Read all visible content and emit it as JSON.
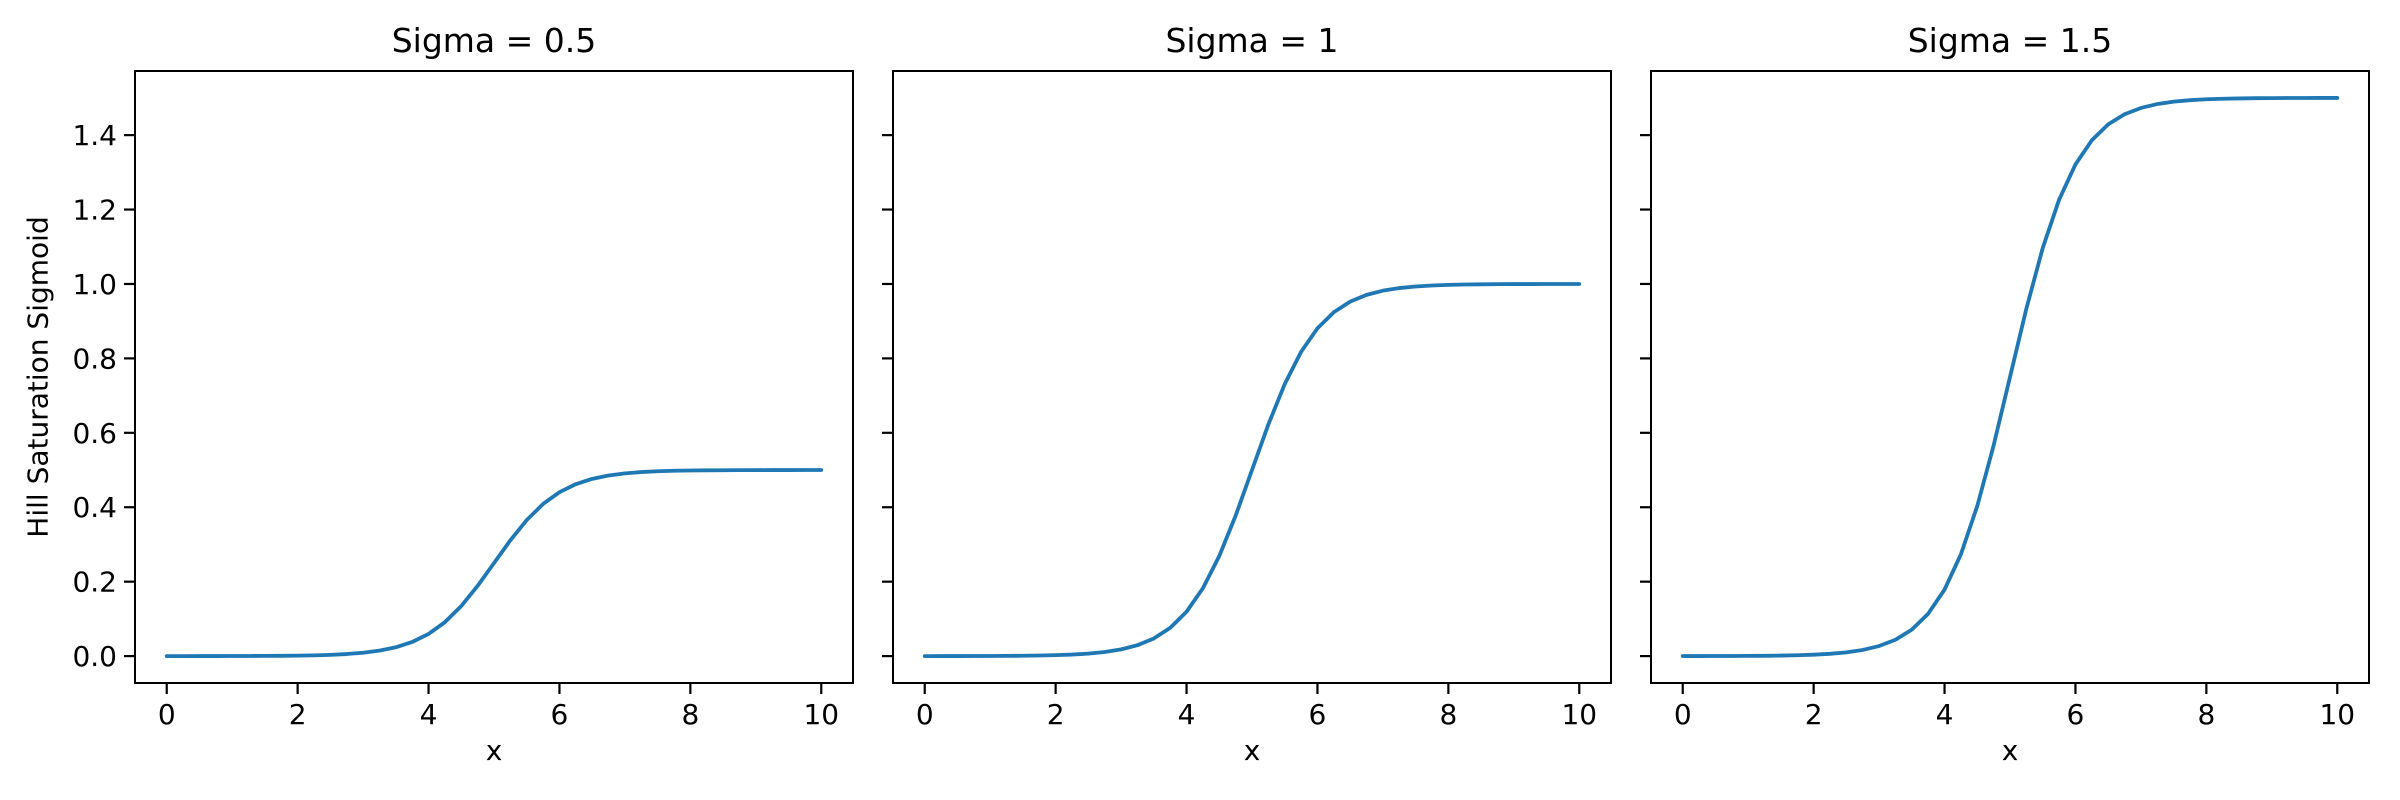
{
  "chart_data": {
    "type": "line",
    "xlabel": "x",
    "ylabel": "Hill Saturation Sigmoid",
    "xlim": [
      -0.5,
      10.5
    ],
    "ylim": [
      -0.075,
      1.575
    ],
    "xticks": [
      0,
      2,
      4,
      6,
      8,
      10
    ],
    "yticks": [
      0.0,
      0.2,
      0.4,
      0.6,
      0.8,
      1.0,
      1.2,
      1.4
    ],
    "ytick_labels": [
      "0.0",
      "0.2",
      "0.4",
      "0.6",
      "0.8",
      "1.0",
      "1.2",
      "1.4"
    ],
    "line_color": "#1f77b4",
    "grid": false,
    "legend": "none",
    "x": [
      0,
      0.25,
      0.5,
      0.75,
      1,
      1.25,
      1.5,
      1.75,
      2,
      2.25,
      2.5,
      2.75,
      3,
      3.25,
      3.5,
      3.75,
      4,
      4.25,
      4.5,
      4.75,
      5,
      5.25,
      5.5,
      5.75,
      6,
      6.25,
      6.5,
      6.75,
      7,
      7.25,
      7.5,
      7.75,
      8,
      8.25,
      8.5,
      8.75,
      9,
      9.25,
      9.5,
      9.75,
      10
    ],
    "subplots": [
      {
        "title": "Sigma = 0.5",
        "sigma": 0.5,
        "values": [
          0.0,
          0.0,
          0.0001,
          0.0001,
          0.0002,
          0.0003,
          0.0005,
          0.0007,
          0.0012,
          0.002,
          0.0033,
          0.0055,
          0.009,
          0.0147,
          0.0237,
          0.0379,
          0.0596,
          0.0912,
          0.1345,
          0.1888,
          0.25,
          0.3112,
          0.3655,
          0.4088,
          0.4404,
          0.4621,
          0.4763,
          0.4853,
          0.491,
          0.4945,
          0.4967,
          0.498,
          0.4988,
          0.4993,
          0.4995,
          0.4997,
          0.4998,
          0.4999,
          0.4999,
          0.5,
          0.5
        ]
      },
      {
        "title": "Sigma = 1",
        "sigma": 1,
        "values": [
          0.0,
          0.0001,
          0.0001,
          0.0002,
          0.0003,
          0.0006,
          0.0009,
          0.0015,
          0.0025,
          0.0041,
          0.0067,
          0.011,
          0.018,
          0.0293,
          0.0474,
          0.0759,
          0.1192,
          0.1824,
          0.2689,
          0.3775,
          0.5,
          0.6225,
          0.7311,
          0.8176,
          0.8808,
          0.9241,
          0.9526,
          0.9707,
          0.982,
          0.989,
          0.9933,
          0.9959,
          0.9975,
          0.9985,
          0.9991,
          0.9995,
          0.9997,
          0.9998,
          0.9999,
          0.9999,
          1.0
        ]
      },
      {
        "title": "Sigma = 1.5",
        "sigma": 1.5,
        "values": [
          0.0001,
          0.0001,
          0.0002,
          0.0003,
          0.0005,
          0.0008,
          0.0014,
          0.0023,
          0.0037,
          0.0061,
          0.01,
          0.0165,
          0.027,
          0.044,
          0.0711,
          0.1138,
          0.1788,
          0.2736,
          0.4034,
          0.5663,
          0.75,
          0.9337,
          1.0966,
          1.2264,
          1.3212,
          1.3862,
          1.4289,
          1.456,
          1.473,
          1.4835,
          1.49,
          1.4939,
          1.4963,
          1.4977,
          1.4986,
          1.4992,
          1.4995,
          1.4997,
          1.4998,
          1.4999,
          1.4999
        ]
      }
    ]
  }
}
